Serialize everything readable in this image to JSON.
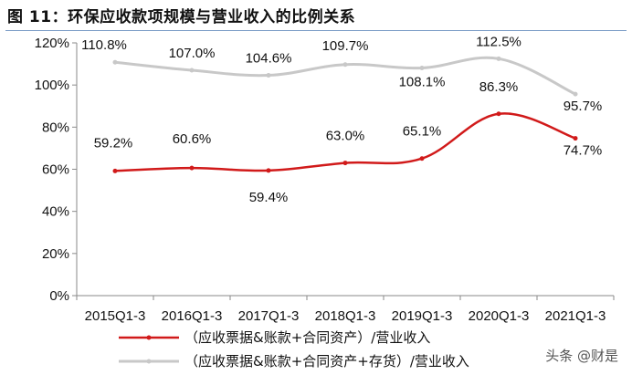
{
  "figure": {
    "title": "图 11：环保应收款项规模与营业收入的比例关系"
  },
  "chart_data": {
    "type": "line",
    "categories": [
      "2015Q1-3",
      "2016Q1-3",
      "2017Q1-3",
      "2018Q1-3",
      "2019Q1-3",
      "2020Q1-3",
      "2021Q1-3"
    ],
    "series": [
      {
        "name": "（应收票据&账款+合同资产）/营业收入",
        "values": [
          59.2,
          60.6,
          59.4,
          63.0,
          65.1,
          86.3,
          74.7
        ],
        "labels": [
          "59.2%",
          "60.6%",
          "59.4%",
          "63.0%",
          "65.1%",
          "86.3%",
          "74.7%"
        ],
        "color": "#d11a1a"
      },
      {
        "name": "（应收票据&账款+合同资产+存货）/营业收入",
        "values": [
          110.8,
          107.0,
          104.6,
          109.7,
          108.1,
          112.5,
          95.7
        ],
        "labels": [
          "110.8%",
          "107.0%",
          "104.6%",
          "109.7%",
          "108.1%",
          "112.5%",
          "95.7%"
        ],
        "color": "#c8c8c8"
      }
    ],
    "y_ticks": [
      "0%",
      "20%",
      "40%",
      "60%",
      "80%",
      "100%",
      "120%"
    ],
    "ylim": [
      0,
      120
    ],
    "grid": false,
    "legend_position": "bottom"
  },
  "watermark": {
    "text": "头条 @财是",
    "icon": "camera-badge-icon"
  }
}
